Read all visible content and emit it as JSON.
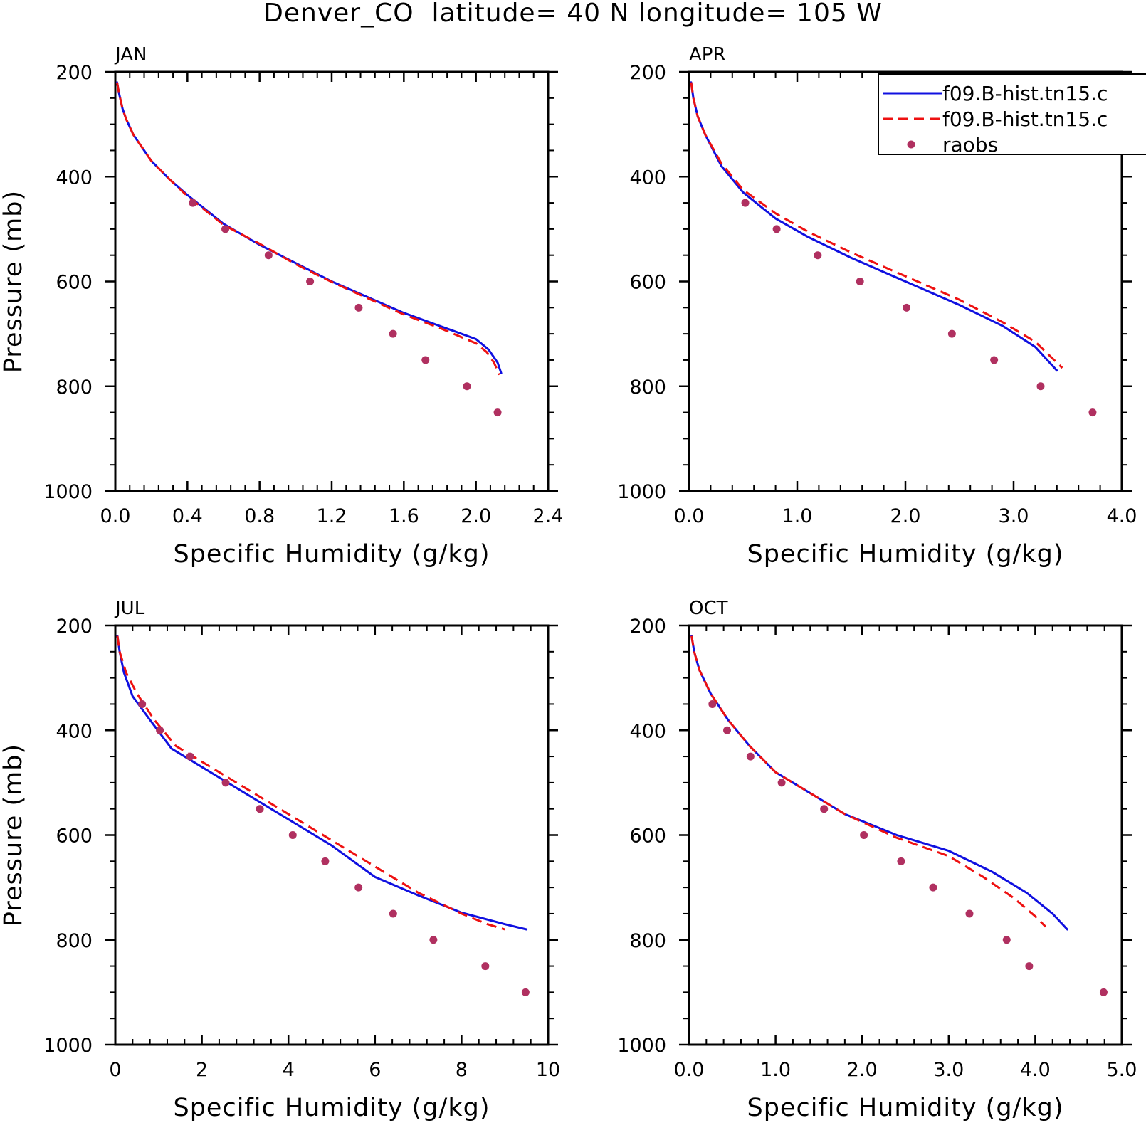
{
  "figure": {
    "title": "Denver_CO  latitude= 40 N longitude= 105 W",
    "legend": {
      "placement": "top-right of APR panel (clipped at figure edge)",
      "entries": [
        {
          "label": "f09.B-hist.tn15.c",
          "style": "solid",
          "color": "#1010e0"
        },
        {
          "label": "f09.B-hist.tn15.c",
          "style": "dashed",
          "color": "#ee1111"
        },
        {
          "label": "raobs",
          "style": "dot",
          "color": "#b03060"
        }
      ]
    }
  },
  "chart_data": [
    {
      "type": "line",
      "panel": "JAN",
      "xlabel": "Specific Humidity (g/kg)",
      "ylabel": "Pressure (mb)",
      "xlim": [
        0,
        2.4
      ],
      "ylim": [
        1000,
        200
      ],
      "y_inverted": true,
      "xticks": [
        "0.0",
        "0.4",
        "0.8",
        "1.2",
        "1.6",
        "2.0",
        "2.4"
      ],
      "yticks": [
        "200",
        "400",
        "600",
        "800",
        "1000"
      ],
      "series": [
        {
          "name": "f09.B-hist.tn15.c",
          "style": "solid",
          "color": "#1010e0",
          "points": [
            [
              0.01,
              220
            ],
            [
              0.02,
              240
            ],
            [
              0.04,
              270
            ],
            [
              0.06,
              290
            ],
            [
              0.1,
              320
            ],
            [
              0.2,
              370
            ],
            [
              0.3,
              405
            ],
            [
              0.4,
              435
            ],
            [
              0.6,
              490
            ],
            [
              0.8,
              530
            ],
            [
              1.0,
              565
            ],
            [
              1.2,
              600
            ],
            [
              1.4,
              630
            ],
            [
              1.6,
              660
            ],
            [
              1.8,
              685
            ],
            [
              2.0,
              710
            ],
            [
              2.07,
              730
            ],
            [
              2.12,
              755
            ],
            [
              2.14,
              775
            ]
          ]
        },
        {
          "name": "f09.B-hist.tn15.c",
          "style": "dashed",
          "color": "#ee1111",
          "points": [
            [
              0.01,
              220
            ],
            [
              0.02,
              240
            ],
            [
              0.04,
              270
            ],
            [
              0.06,
              290
            ],
            [
              0.1,
              320
            ],
            [
              0.2,
              370
            ],
            [
              0.3,
              405
            ],
            [
              0.4,
              437
            ],
            [
              0.6,
              492
            ],
            [
              0.8,
              528
            ],
            [
              1.0,
              567
            ],
            [
              1.2,
              601
            ],
            [
              1.4,
              632
            ],
            [
              1.6,
              663
            ],
            [
              1.8,
              689
            ],
            [
              2.0,
              718
            ],
            [
              2.06,
              735
            ],
            [
              2.1,
              755
            ],
            [
              2.13,
              778
            ]
          ]
        },
        {
          "name": "raobs",
          "style": "dot",
          "color": "#b03060",
          "points": [
            [
              0.43,
              450
            ],
            [
              0.61,
              500
            ],
            [
              0.85,
              550
            ],
            [
              1.08,
              600
            ],
            [
              1.35,
              650
            ],
            [
              1.54,
              700
            ],
            [
              1.72,
              750
            ],
            [
              1.95,
              800
            ],
            [
              2.12,
              850
            ]
          ]
        }
      ]
    },
    {
      "type": "line",
      "panel": "APR",
      "xlabel": "Specific Humidity (g/kg)",
      "ylabel": "",
      "xlim": [
        0,
        4.0
      ],
      "ylim": [
        1000,
        200
      ],
      "y_inverted": true,
      "xticks": [
        "0.0",
        "1.0",
        "2.0",
        "3.0",
        "4.0"
      ],
      "yticks": [
        "200",
        "400",
        "600",
        "800",
        "1000"
      ],
      "series": [
        {
          "name": "f09.B-hist.tn15.c",
          "style": "solid",
          "color": "#1010e0",
          "points": [
            [
              0.02,
              220
            ],
            [
              0.04,
              250
            ],
            [
              0.08,
              285
            ],
            [
              0.15,
              320
            ],
            [
              0.3,
              380
            ],
            [
              0.5,
              430
            ],
            [
              0.8,
              480
            ],
            [
              1.1,
              515
            ],
            [
              1.5,
              555
            ],
            [
              2.0,
              600
            ],
            [
              2.5,
              645
            ],
            [
              2.9,
              685
            ],
            [
              3.2,
              725
            ],
            [
              3.4,
              770
            ]
          ]
        },
        {
          "name": "f09.B-hist.tn15.c",
          "style": "dashed",
          "color": "#ee1111",
          "points": [
            [
              0.02,
              220
            ],
            [
              0.04,
              250
            ],
            [
              0.08,
              285
            ],
            [
              0.15,
              320
            ],
            [
              0.3,
              375
            ],
            [
              0.5,
              425
            ],
            [
              0.8,
              470
            ],
            [
              1.1,
              505
            ],
            [
              1.5,
              545
            ],
            [
              2.0,
              590
            ],
            [
              2.5,
              635
            ],
            [
              2.9,
              678
            ],
            [
              3.2,
              715
            ],
            [
              3.45,
              765
            ]
          ]
        },
        {
          "name": "raobs",
          "style": "dot",
          "color": "#b03060",
          "points": [
            [
              0.52,
              450
            ],
            [
              0.81,
              500
            ],
            [
              1.19,
              550
            ],
            [
              1.58,
              600
            ],
            [
              2.01,
              650
            ],
            [
              2.43,
              700
            ],
            [
              2.82,
              750
            ],
            [
              3.25,
              800
            ],
            [
              3.73,
              850
            ]
          ]
        }
      ]
    },
    {
      "type": "line",
      "panel": "JUL",
      "xlabel": "Specific Humidity (g/kg)",
      "ylabel": "Pressure (mb)",
      "xlim": [
        0,
        10
      ],
      "ylim": [
        1000,
        200
      ],
      "y_inverted": true,
      "xticks": [
        "0",
        "2",
        "4",
        "6",
        "8",
        "10"
      ],
      "yticks": [
        "200",
        "400",
        "600",
        "800",
        "1000"
      ],
      "series": [
        {
          "name": "f09.B-hist.tn15.c",
          "style": "solid",
          "color": "#1010e0",
          "points": [
            [
              0.05,
              220
            ],
            [
              0.1,
              250
            ],
            [
              0.2,
              290
            ],
            [
              0.4,
              335
            ],
            [
              0.8,
              380
            ],
            [
              1.3,
              435
            ],
            [
              2.0,
              470
            ],
            [
              3.0,
              520
            ],
            [
              4.0,
              570
            ],
            [
              5.0,
              620
            ],
            [
              6.0,
              680
            ],
            [
              7.0,
              715
            ],
            [
              8.0,
              748
            ],
            [
              9.0,
              770
            ],
            [
              9.5,
              780
            ]
          ]
        },
        {
          "name": "f09.B-hist.tn15.c",
          "style": "dashed",
          "color": "#ee1111",
          "points": [
            [
              0.05,
              220
            ],
            [
              0.1,
              250
            ],
            [
              0.25,
              290
            ],
            [
              0.5,
              330
            ],
            [
              0.9,
              380
            ],
            [
              1.4,
              430
            ],
            [
              2.0,
              460
            ],
            [
              3.0,
              510
            ],
            [
              4.0,
              560
            ],
            [
              5.0,
              610
            ],
            [
              6.0,
              660
            ],
            [
              7.0,
              710
            ],
            [
              8.0,
              750
            ],
            [
              8.6,
              770
            ],
            [
              9.0,
              780
            ]
          ]
        },
        {
          "name": "raobs",
          "style": "dot",
          "color": "#b03060",
          "points": [
            [
              0.62,
              350
            ],
            [
              1.03,
              400
            ],
            [
              1.73,
              450
            ],
            [
              2.55,
              500
            ],
            [
              3.34,
              550
            ],
            [
              4.1,
              600
            ],
            [
              4.85,
              650
            ],
            [
              5.62,
              700
            ],
            [
              6.42,
              750
            ],
            [
              7.35,
              800
            ],
            [
              8.55,
              850
            ],
            [
              9.48,
              900
            ]
          ]
        }
      ]
    },
    {
      "type": "line",
      "panel": "OCT",
      "xlabel": "Specific Humidity (g/kg)",
      "ylabel": "",
      "xlim": [
        0,
        5.0
      ],
      "ylim": [
        1000,
        200
      ],
      "y_inverted": true,
      "xticks": [
        "0.0",
        "1.0",
        "2.0",
        "3.0",
        "4.0",
        "5.0"
      ],
      "yticks": [
        "200",
        "400",
        "600",
        "800",
        "1000"
      ],
      "series": [
        {
          "name": "f09.B-hist.tn15.c",
          "style": "solid",
          "color": "#1010e0",
          "points": [
            [
              0.03,
              220
            ],
            [
              0.06,
              250
            ],
            [
              0.12,
              285
            ],
            [
              0.25,
              330
            ],
            [
              0.45,
              380
            ],
            [
              0.7,
              430
            ],
            [
              1.0,
              480
            ],
            [
              1.3,
              510
            ],
            [
              1.8,
              560
            ],
            [
              2.4,
              600
            ],
            [
              3.0,
              630
            ],
            [
              3.5,
              670
            ],
            [
              3.9,
              710
            ],
            [
              4.2,
              750
            ],
            [
              4.37,
              780
            ]
          ]
        },
        {
          "name": "f09.B-hist.tn15.c",
          "style": "dashed",
          "color": "#ee1111",
          "points": [
            [
              0.03,
              220
            ],
            [
              0.06,
              250
            ],
            [
              0.12,
              285
            ],
            [
              0.25,
              330
            ],
            [
              0.45,
              380
            ],
            [
              0.7,
              430
            ],
            [
              1.0,
              480
            ],
            [
              1.3,
              510
            ],
            [
              1.8,
              560
            ],
            [
              2.4,
              605
            ],
            [
              3.0,
              640
            ],
            [
              3.4,
              680
            ],
            [
              3.75,
              720
            ],
            [
              4.0,
              755
            ],
            [
              4.12,
              775
            ]
          ]
        },
        {
          "name": "raobs",
          "style": "dot",
          "color": "#b03060",
          "points": [
            [
              0.27,
              350
            ],
            [
              0.44,
              400
            ],
            [
              0.71,
              450
            ],
            [
              1.07,
              500
            ],
            [
              1.56,
              550
            ],
            [
              2.02,
              600
            ],
            [
              2.45,
              650
            ],
            [
              2.82,
              700
            ],
            [
              3.24,
              750
            ],
            [
              3.67,
              800
            ],
            [
              3.93,
              850
            ],
            [
              4.79,
              900
            ]
          ]
        }
      ]
    }
  ]
}
